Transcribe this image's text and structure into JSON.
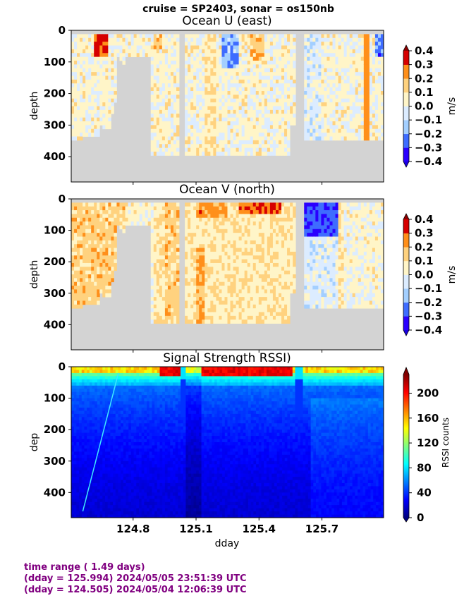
{
  "suptitle": "cruise = SP2403,  sonar = os150nb",
  "footer": {
    "line1": "time range ( 1.49 days)",
    "line2": "(dday = 125.994) 2024/05/05 23:51:39 UTC",
    "line3": "(dday = 124.505) 2024/05/04 12:06:39 UTC",
    "color": "#800080"
  },
  "chart_data": [
    {
      "type": "heatmap",
      "title": "Ocean U (east)",
      "xlabel": "",
      "ylabel": "depth",
      "xlim": [
        124.505,
        125.994
      ],
      "ylim": [
        480,
        0
      ],
      "y_ticks": [
        0,
        100,
        200,
        300,
        400
      ],
      "colorbar": {
        "label": "m/s",
        "range": [
          -0.4,
          0.4
        ],
        "ticks": [
          "0.4",
          "0.3",
          "0.2",
          "0.1",
          "0.0",
          "−0.1",
          "−0.2",
          "−0.3",
          "−0.4"
        ]
      },
      "no_data_color": "#d3d3d3"
    },
    {
      "type": "heatmap",
      "title": "Ocean V (north)",
      "xlabel": "",
      "ylabel": "depth",
      "xlim": [
        124.505,
        125.994
      ],
      "ylim": [
        480,
        0
      ],
      "y_ticks": [
        0,
        100,
        200,
        300,
        400
      ],
      "colorbar": {
        "label": "m/s",
        "range": [
          -0.4,
          0.4
        ],
        "ticks": [
          "0.4",
          "0.3",
          "0.2",
          "0.1",
          "0.0",
          "−0.1",
          "−0.2",
          "−0.3",
          "−0.4"
        ]
      },
      "no_data_color": "#d3d3d3"
    },
    {
      "type": "heatmap",
      "title": "Signal Strength RSSI)",
      "xlabel": "dday",
      "ylabel": "dep",
      "xlim": [
        124.505,
        125.994
      ],
      "ylim": [
        480,
        0
      ],
      "x_ticks": [
        124.8,
        125.1,
        125.4,
        125.7
      ],
      "x_tick_labels": [
        "124.8",
        "125.1",
        "125.4",
        "125.7"
      ],
      "y_ticks": [
        0,
        100,
        200,
        300,
        400
      ],
      "colorbar": {
        "label": "RSSI counts",
        "range": [
          0,
          230
        ],
        "ticks": [
          "200",
          "160",
          "120",
          "80",
          "40",
          "0"
        ]
      }
    }
  ]
}
